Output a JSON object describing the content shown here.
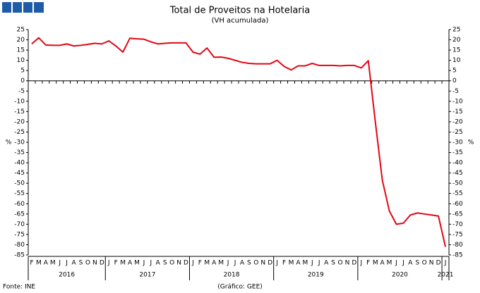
{
  "chart_data": {
    "type": "line",
    "title": "Total de Proveitos na Hotelaria",
    "subtitle": "(VH acumulada)",
    "y_label": "%",
    "y2_label": "%",
    "source": "Fonte: INE",
    "credit": "(Gráfico: GEE)",
    "categories": [
      "F",
      "M",
      "A",
      "M",
      "J",
      "J",
      "A",
      "S",
      "O",
      "N",
      "D",
      "J",
      "F",
      "M",
      "A",
      "M",
      "J",
      "J",
      "A",
      "S",
      "O",
      "N",
      "D",
      "J",
      "F",
      "M",
      "A",
      "M",
      "J",
      "J",
      "A",
      "S",
      "O",
      "N",
      "D",
      "J",
      "F",
      "M",
      "A",
      "M",
      "J",
      "J",
      "A",
      "S",
      "O",
      "N",
      "D",
      "J",
      "F",
      "M",
      "A",
      "M",
      "J",
      "J",
      "A",
      "S",
      "O",
      "N",
      "D",
      "J"
    ],
    "year_labels": [
      "2016",
      "2017",
      "2018",
      "2019",
      "2020",
      "2021"
    ],
    "series": [
      {
        "name": "Total de Proveitos",
        "color": "#e30613",
        "values": [
          18,
          21,
          17.5,
          17.3,
          17.3,
          18,
          17,
          17.3,
          17.8,
          18.3,
          18,
          19.5,
          17,
          14,
          20.8,
          20.5,
          20.3,
          19,
          18,
          18.3,
          18.5,
          18.5,
          18.5,
          14,
          13,
          16,
          11.5,
          11.6,
          11,
          10,
          9,
          8.5,
          8.3,
          8.3,
          8.3,
          10,
          7,
          5.3,
          7.3,
          7.3,
          8.5,
          7.5,
          7.5,
          7.5,
          7.3,
          7.5,
          7.5,
          6.3,
          9.8,
          -20,
          -48.5,
          -63.5,
          -70,
          -69.5,
          -65.5,
          -64.5,
          -65,
          -65.5,
          -66,
          -81
        ]
      }
    ],
    "ylim": [
      -85,
      25
    ],
    "yticks": [
      -85,
      -80,
      -75,
      -70,
      -65,
      -60,
      -55,
      -50,
      -45,
      -40,
      -35,
      -30,
      -25,
      -20,
      -15,
      -10,
      -5,
      0,
      5,
      10,
      15,
      20,
      25
    ]
  }
}
